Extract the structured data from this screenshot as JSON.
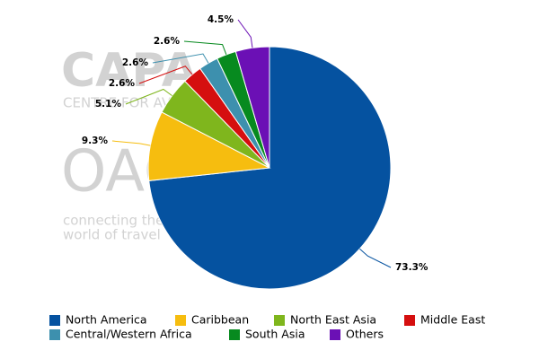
{
  "chart_data": {
    "type": "pie",
    "categories": [
      "North America",
      "Caribbean",
      "North East Asia",
      "Middle East",
      "Central/Western Africa",
      "South Asia",
      "Others"
    ],
    "values": [
      73.3,
      9.3,
      5.1,
      2.6,
      2.6,
      2.6,
      4.5
    ],
    "value_labels": [
      "73.3%",
      "9.3%",
      "5.1%",
      "2.6%",
      "2.6%",
      "2.6%",
      "4.5%"
    ],
    "colors": [
      "#0552a0",
      "#f6bd0f",
      "#7fb61d",
      "#d50f0f",
      "#3d90ae",
      "#078a1f",
      "#6b10b5"
    ],
    "watermark": [
      "CAPA",
      "CENTRE FOR AVIATION",
      "OAG",
      "connecting the",
      "world of travel"
    ]
  }
}
